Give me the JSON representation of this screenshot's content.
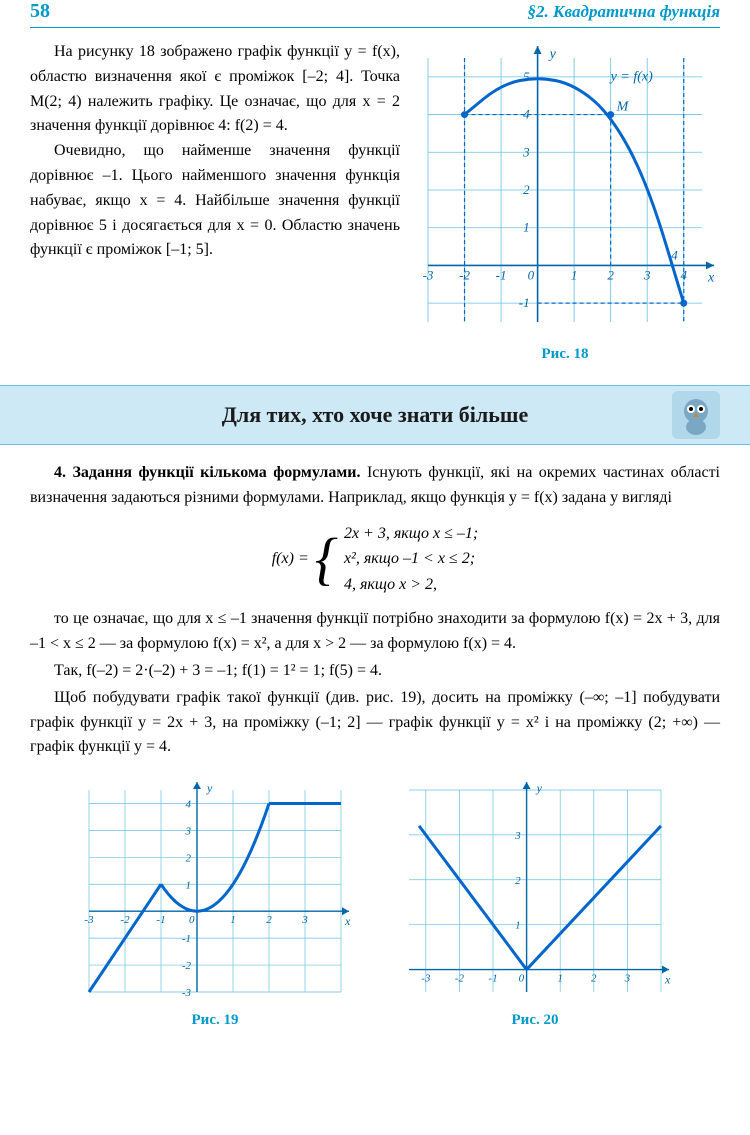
{
  "header": {
    "page_number": "58",
    "section": "§2. Квадратична функція"
  },
  "para1": "На рисунку 18 зображено графік функції y = f(x), областю визначення якої є проміжок [–2; 4]. Точка M(2; 4) належить графіку. Це означає, що для x = 2 значення функції дорівнює 4: f(2) = 4.",
  "para2": "Очевидно, що найменше значення функції дорівнює –1. Цього найменшого значення функція набуває, якщо x = 4. Найбільше значення функції дорівнює 5 і досягається для x = 0. Областю значень функції є проміжок [–1; 5].",
  "fig18": {
    "caption": "Рис. 18",
    "xmin": -3,
    "xmax": 4.5,
    "ymin": -1.5,
    "ymax": 5.5,
    "grid_color": "#66c2e0",
    "axis_color": "#0066aa",
    "curve_color": "#0066cc",
    "dashed_color": "#0066cc",
    "bg": "#ffffff",
    "xlabels": [
      "-3",
      "-2",
      "-1",
      "0",
      "1",
      "2",
      "3",
      "4"
    ],
    "ylabels": [
      "-1",
      "1",
      "2",
      "3",
      "4",
      "5"
    ],
    "label_M": "M",
    "label_eq": "y = f(x)",
    "label_x": "x",
    "label_y": "y",
    "curve_points": [
      [
        -2,
        4
      ],
      [
        -1,
        4.8
      ],
      [
        0,
        5
      ],
      [
        1,
        4.8
      ],
      [
        2,
        4
      ],
      [
        3,
        2.2
      ],
      [
        4,
        -1
      ]
    ],
    "M_point": [
      2,
      4
    ],
    "vlines": [
      -2,
      4
    ],
    "hlines": [
      4,
      -1
    ]
  },
  "banner": {
    "text": "Для тих, хто хоче знати більше"
  },
  "sec4_title": "4. Задання функції кількома формулами.",
  "sec4_p1": " Існують функції, які на окремих частинах області визначення задаються різними формулами. Наприклад, якщо функція y = f(x) задана у вигляді",
  "formula": {
    "lhs": "f(x) = ",
    "rows": [
      "2x + 3,  якщо  x ≤ –1;",
      "x²,        якщо  –1 < x ≤ 2;",
      "4,         якщо  x > 2,"
    ]
  },
  "sec4_p2": "то це означає, що для x ≤ –1 значення функції потрібно знаходити за формулою f(x) = 2x + 3, для –1 < x ≤ 2 — за формулою f(x) = x², а для x > 2 — за формулою f(x) = 4.",
  "sec4_p3": "Так,  f(–2) = 2·(–2) + 3 = –1;  f(1) = 1² = 1;  f(5) = 4.",
  "sec4_p4": "Щоб побудувати графік такої функції (див. рис. 19), досить на проміжку (–∞; –1] побудувати графік функції y = 2x + 3, на проміжку (–1; 2] — графік функції y = x² і на проміжку (2; +∞) — графік функції y = 4.",
  "fig19": {
    "caption": "Рис. 19",
    "xmin": -3,
    "xmax": 4,
    "ymin": -3,
    "ymax": 4.5,
    "grid_color": "#66c2e0",
    "axis_color": "#0066aa",
    "curve_color": "#0066cc",
    "xlabels": [
      "-3",
      "-2",
      "-1",
      "0",
      "1",
      "2",
      "3"
    ],
    "ylabels": [
      "-3",
      "-2",
      "-1",
      "1",
      "2",
      "3",
      "4"
    ],
    "label_x": "x",
    "label_y": "y",
    "segments": [
      [
        [
          -3,
          -3
        ],
        [
          -1,
          1
        ]
      ],
      [
        [
          2,
          4
        ],
        [
          4,
          4
        ]
      ]
    ],
    "parabola": {
      "from": -1,
      "to": 2
    }
  },
  "fig20": {
    "caption": "Рис. 20",
    "xmin": -3.5,
    "xmax": 4,
    "ymin": -0.5,
    "ymax": 4,
    "grid_color": "#66c2e0",
    "axis_color": "#0066aa",
    "curve_color": "#0066cc",
    "xlabels": [
      "-3",
      "-2",
      "-1",
      "0",
      "1",
      "2",
      "3"
    ],
    "ylabels": [
      "1",
      "2",
      "3"
    ],
    "label_x": "x",
    "label_y": "y",
    "left_line": [
      [
        -3.2,
        3.2
      ],
      [
        0,
        0
      ]
    ],
    "right_line": [
      [
        0,
        0
      ],
      [
        4,
        3.2
      ]
    ]
  }
}
